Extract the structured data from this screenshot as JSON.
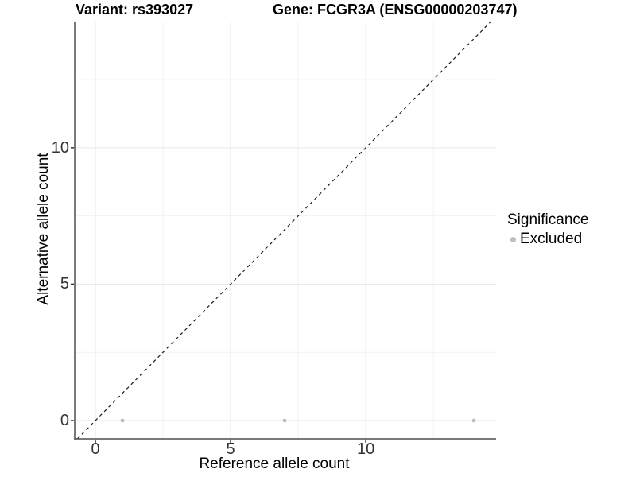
{
  "header": {
    "variant_label": "Variant: rs393027",
    "gene_label": "Gene: FCGR3A (ENSG00000203747)"
  },
  "chart_data": {
    "type": "scatter",
    "title": "Variant: rs393027 | Gene: FCGR3A (ENSG00000203747)",
    "xlabel": "Reference allele count",
    "ylabel": "Alternative allele count",
    "xlim": [
      -0.765,
      14.82
    ],
    "ylim": [
      -0.67,
      14.6
    ],
    "x_ticks": [
      0,
      5,
      10
    ],
    "y_ticks": [
      0,
      5,
      10
    ],
    "x_minor_ticks": [
      2.5,
      7.5,
      12.5
    ],
    "y_minor_ticks": [
      2.5,
      7.5,
      12.5
    ],
    "grid": true,
    "legend_position": "right",
    "points": [
      {
        "x": 1,
        "y": 0,
        "significance": "Excluded"
      },
      {
        "x": 7,
        "y": 0,
        "significance": "Excluded"
      },
      {
        "x": 14,
        "y": 0,
        "significance": "Excluded"
      }
    ],
    "reference_line": {
      "kind": "identity",
      "slope": 1,
      "intercept": 0,
      "style": "dashed"
    }
  },
  "legend": {
    "title": "Significance",
    "items": [
      {
        "label": "Excluded",
        "color": "#bebebe"
      }
    ]
  },
  "colors": {
    "background": "#ffffff",
    "point": "#bebebe",
    "grid_major": "#e6e6e6",
    "grid_minor": "#f2f2f2",
    "axis_line": "#4d4d4d",
    "tick": "#333333",
    "dashed_line": "#1a1a1a"
  }
}
